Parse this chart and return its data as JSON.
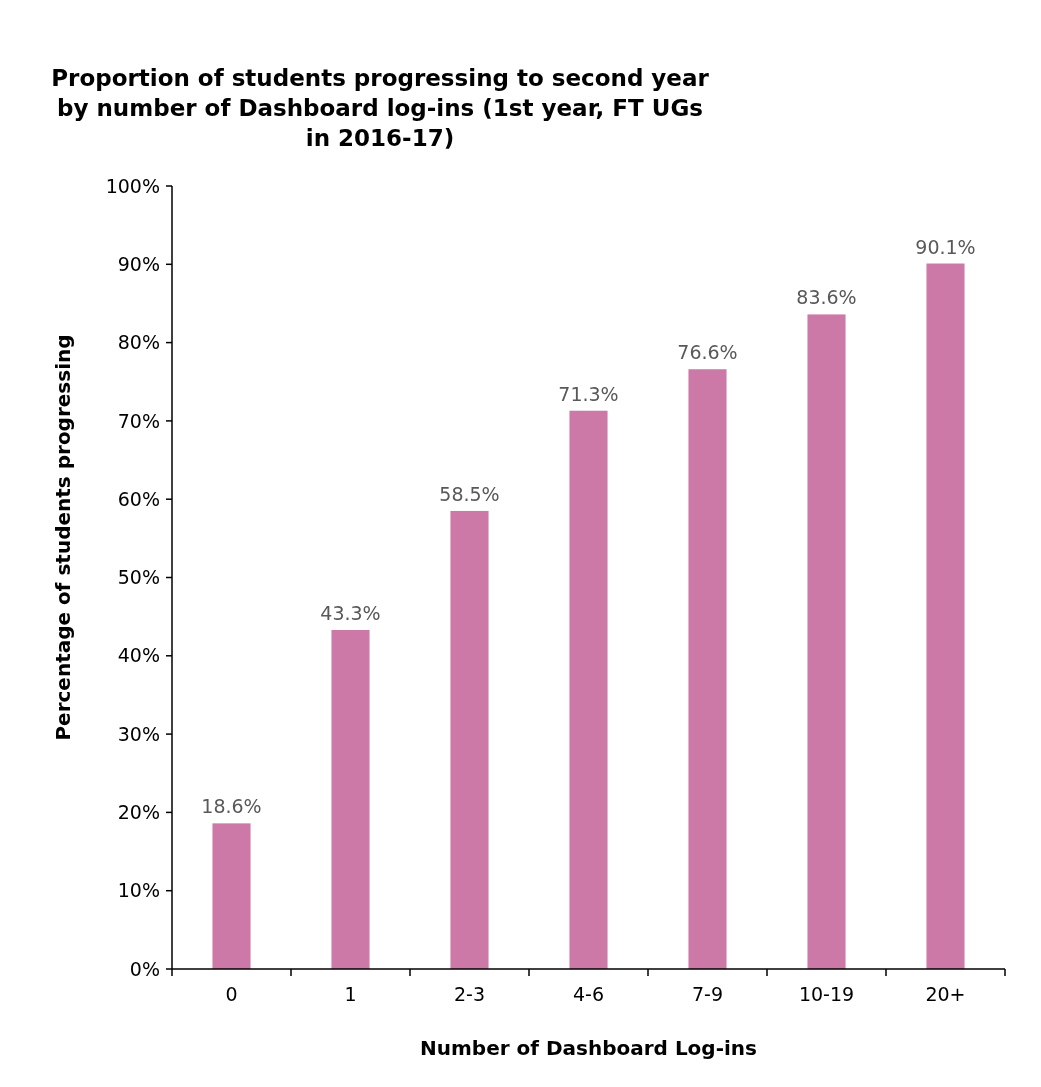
{
  "chart_data": {
    "type": "bar",
    "title": "Proportion of students progressing to second year by number of Dashboard log-ins (1st year, FT UGs in 2016-17)",
    "xlabel": "Number of Dashboard Log-ins",
    "ylabel": "Percentage of students progressing",
    "categories": [
      "0",
      "1",
      "2-3",
      "4-6",
      "7-9",
      "10-19",
      "20+"
    ],
    "values": [
      18.6,
      43.3,
      58.5,
      71.3,
      76.6,
      83.6,
      90.1
    ],
    "value_labels": [
      "18.6%",
      "43.3%",
      "58.5%",
      "71.3%",
      "76.6%",
      "83.6%",
      "90.1%"
    ],
    "color": "#cc79a7",
    "ylim": [
      0,
      100
    ],
    "yticks": [
      {
        "value": 0,
        "label": "0%"
      },
      {
        "value": 10,
        "label": "10%"
      },
      {
        "value": 20,
        "label": "20%"
      },
      {
        "value": 30,
        "label": "30%"
      },
      {
        "value": 40,
        "label": "40%"
      },
      {
        "value": 50,
        "label": "50%"
      },
      {
        "value": 60,
        "label": "60%"
      },
      {
        "value": 70,
        "label": "70%"
      },
      {
        "value": 80,
        "label": "80%"
      },
      {
        "value": 90,
        "label": "90%"
      },
      {
        "value": 100,
        "label": "100%"
      }
    ],
    "orientation": "vertical"
  }
}
